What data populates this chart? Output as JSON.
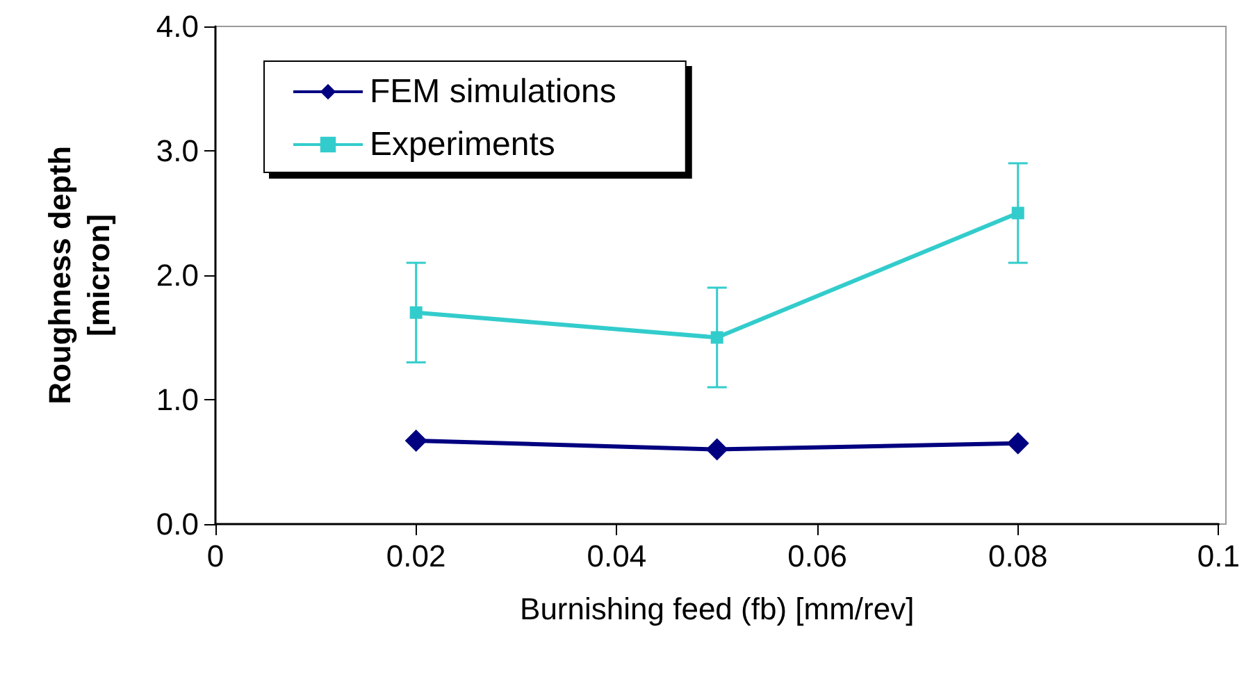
{
  "chart_data": {
    "type": "line",
    "xlabel": "Burnishing feed (fb) [mm/rev]",
    "ylabel": "Roughness depth\n[micron]",
    "x": [
      0.02,
      0.05,
      0.08
    ],
    "series": [
      {
        "name": "FEM simulations",
        "color": "#000080",
        "marker": "diamond",
        "values": [
          0.67,
          0.6,
          0.65
        ]
      },
      {
        "name": "Experiments",
        "color": "#33cccc",
        "marker": "square",
        "values": [
          1.7,
          1.5,
          2.5
        ],
        "errors": [
          0.4,
          0.4,
          0.4
        ]
      }
    ],
    "xlim": [
      0,
      0.1
    ],
    "xticks": [
      0,
      0.02,
      0.04,
      0.06,
      0.08,
      0.1
    ],
    "ylim": [
      0,
      4
    ],
    "yticks": [
      {
        "value": 0,
        "label": "0.0"
      },
      {
        "value": 1,
        "label": "1.0"
      },
      {
        "value": 2,
        "label": "2.0"
      },
      {
        "value": 3,
        "label": "3.0"
      },
      {
        "value": 4,
        "label": "4.0"
      }
    ],
    "legend": "top left",
    "grid": false,
    "line_style": "solid"
  }
}
